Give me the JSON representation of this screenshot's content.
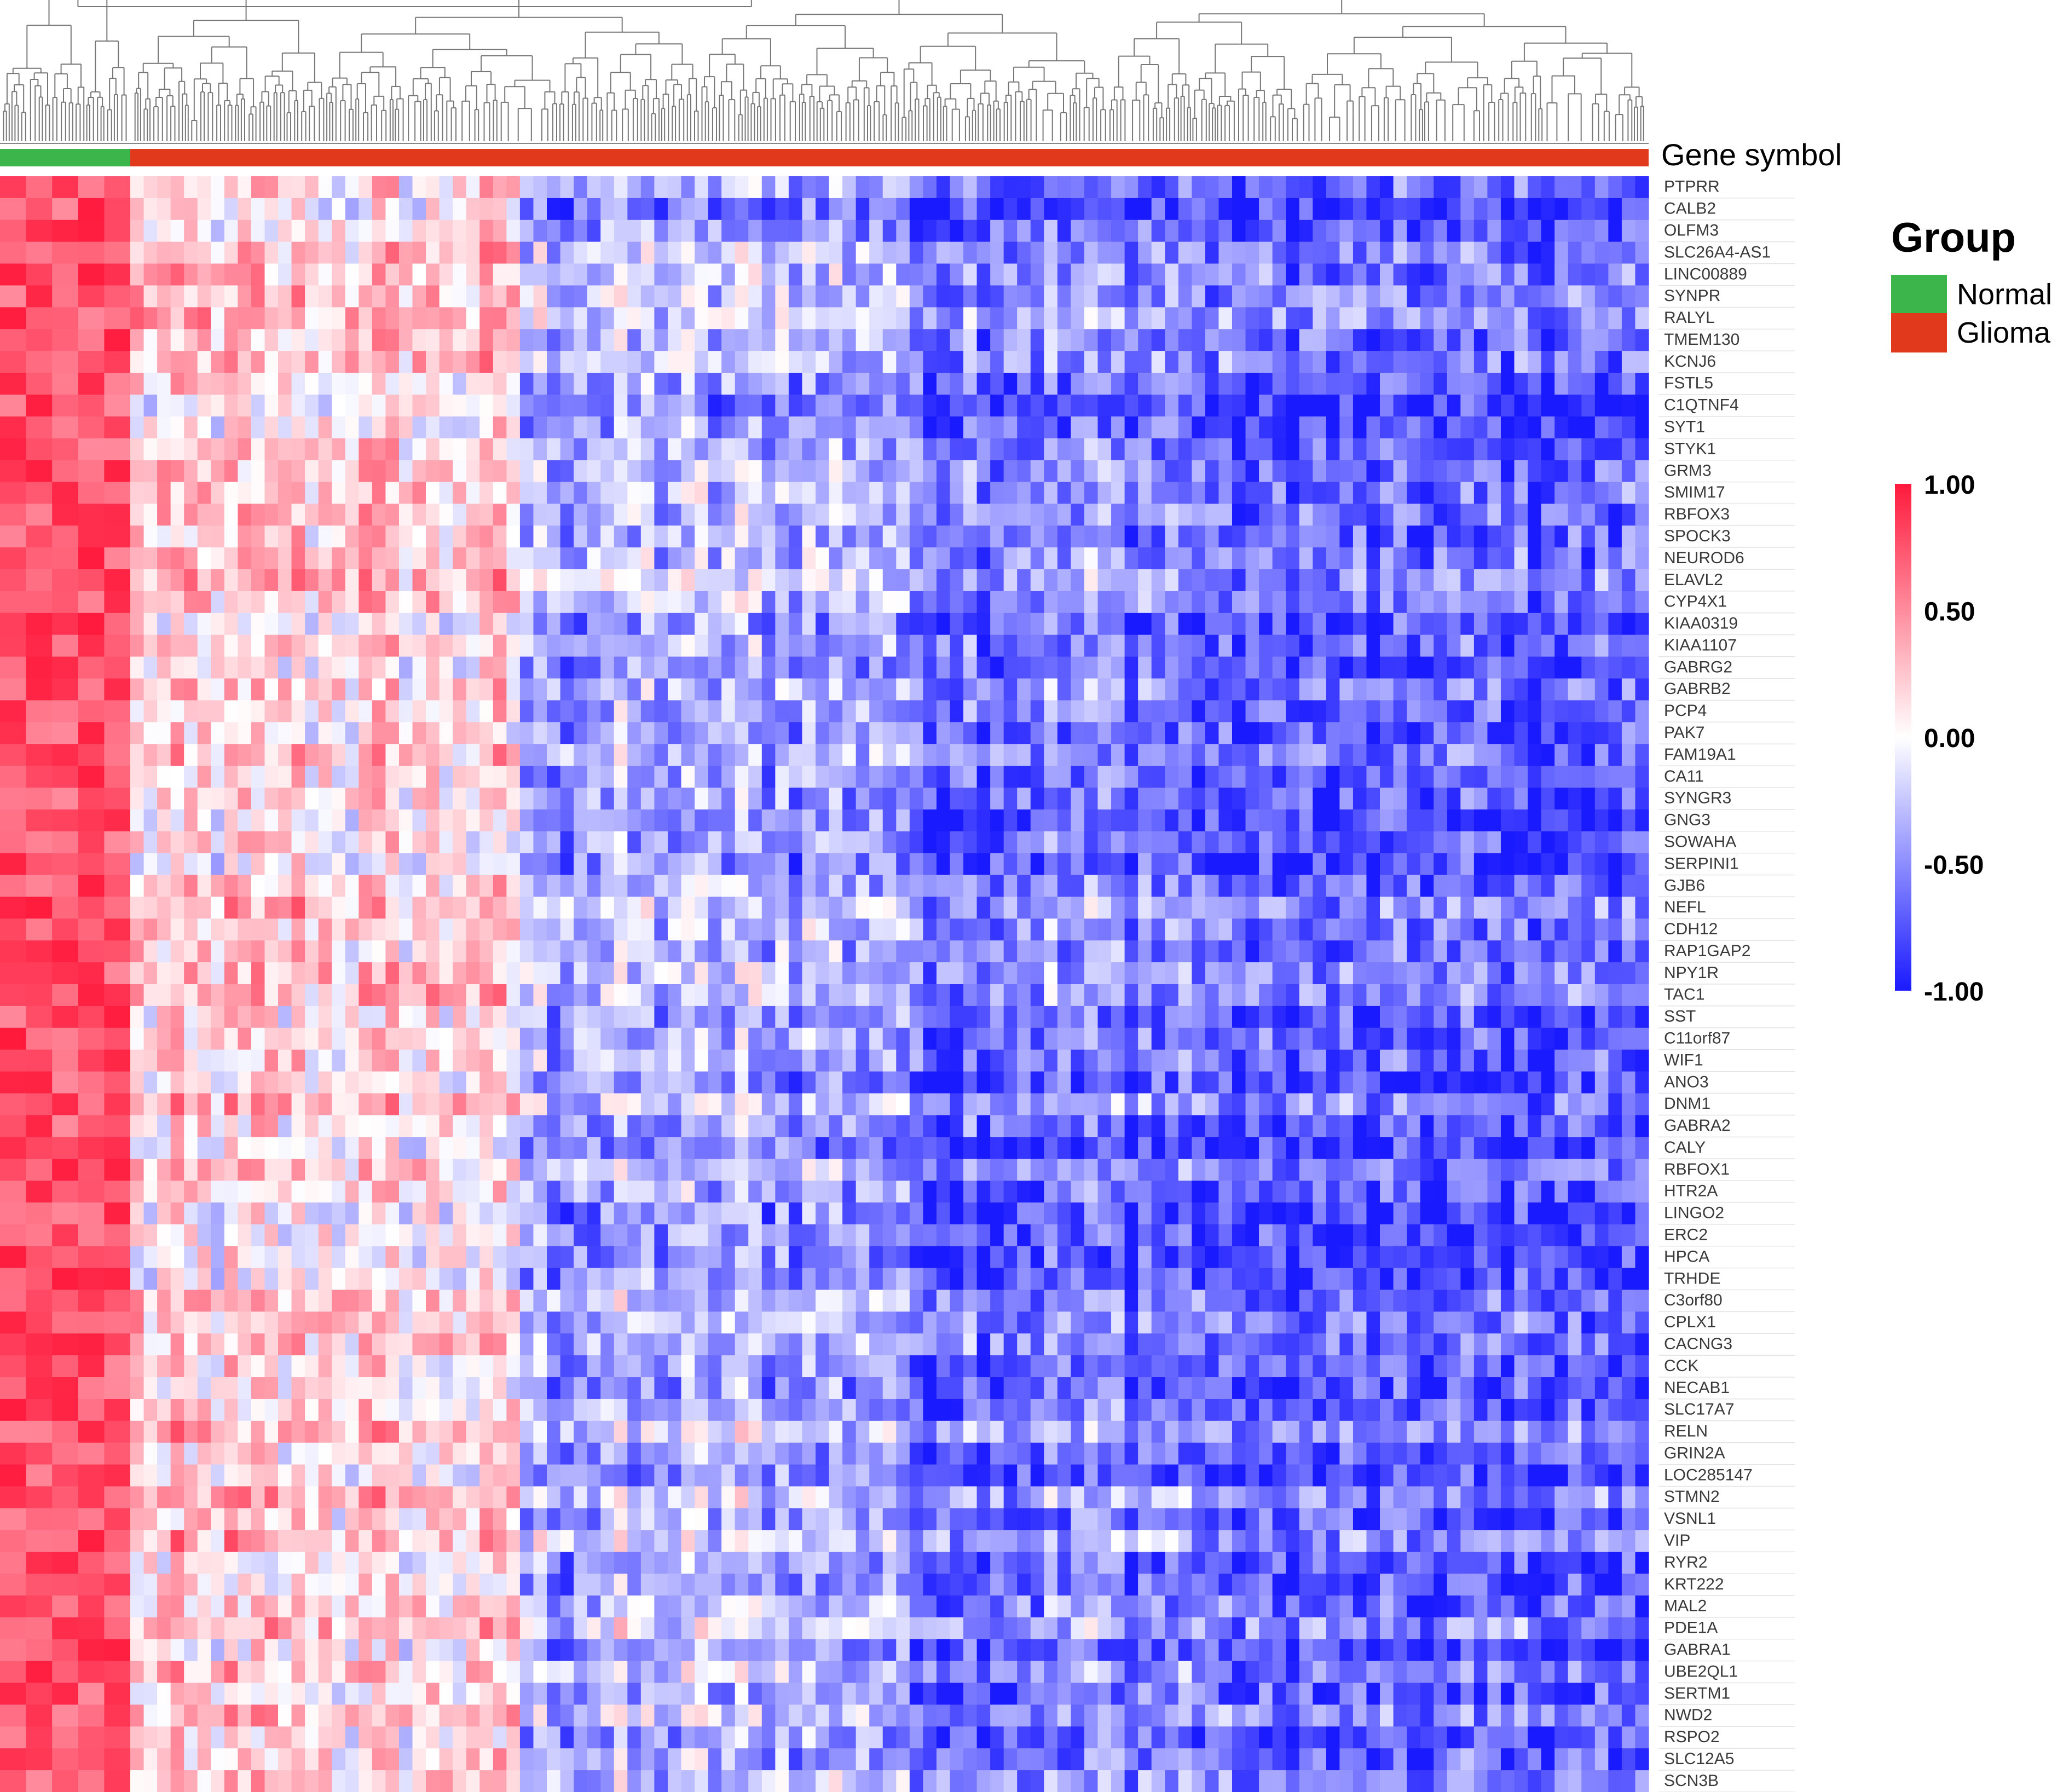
{
  "chart_data": {
    "type": "heatmap",
    "column_annotation_title": "Gene symbol",
    "rows": [
      "PTPRR",
      "CALB2",
      "OLFM3",
      "SLC26A4-AS1",
      "LINC00889",
      "SYNPR",
      "RALYL",
      "TMEM130",
      "KCNJ6",
      "FSTL5",
      "C1QTNF4",
      "SYT1",
      "STYK1",
      "GRM3",
      "SMIM17",
      "RBFOX3",
      "SPOCK3",
      "NEUROD6",
      "ELAVL2",
      "CYP4X1",
      "KIAA0319",
      "KIAA1107",
      "GABRG2",
      "GABRB2",
      "PCP4",
      "PAK7",
      "FAM19A1",
      "CA11",
      "SYNGR3",
      "GNG3",
      "SOWAHA",
      "SERPINI1",
      "GJB6",
      "NEFL",
      "CDH12",
      "RAP1GAP2",
      "NPY1R",
      "TAC1",
      "SST",
      "C11orf87",
      "WIF1",
      "ANO3",
      "DNM1",
      "GABRA2",
      "CALY",
      "RBFOX1",
      "HTR2A",
      "LINGO2",
      "ERC2",
      "HPCA",
      "TRHDE",
      "C3orf80",
      "CPLX1",
      "CACNG3",
      "CCK",
      "NECAB1",
      "SLC17A7",
      "RELN",
      "GRIN2A",
      "LOC285147",
      "STMN2",
      "VSNL1",
      "VIP",
      "RYR2",
      "KRT222",
      "MAL2",
      "PDE1A",
      "GABRA1",
      "UBE2QL1",
      "SERTM1",
      "NWD2",
      "RSPO2",
      "SLC12A5",
      "SCN3B"
    ],
    "column_groups": [
      {
        "name": "Normal",
        "color": "#3cb54a",
        "count": 5
      },
      {
        "name": "Glioma",
        "color": "#e0391c",
        "count": 113
      }
    ],
    "color_scale": {
      "min": -1.0,
      "mid": 0.0,
      "max": 1.0,
      "min_color": "#1a1aff",
      "mid_color": "#ffffff",
      "max_color": "#ff1a3c",
      "ticks": [
        "1.00",
        "0.50",
        "0.00",
        "-0.50",
        "-1.00"
      ]
    },
    "legend": {
      "title": "Group",
      "items": [
        {
          "label": "Normal",
          "color": "#3cb54a"
        },
        {
          "label": "Glioma",
          "color": "#e0391c"
        }
      ],
      "placement": "right"
    },
    "dendrogram": "top"
  }
}
